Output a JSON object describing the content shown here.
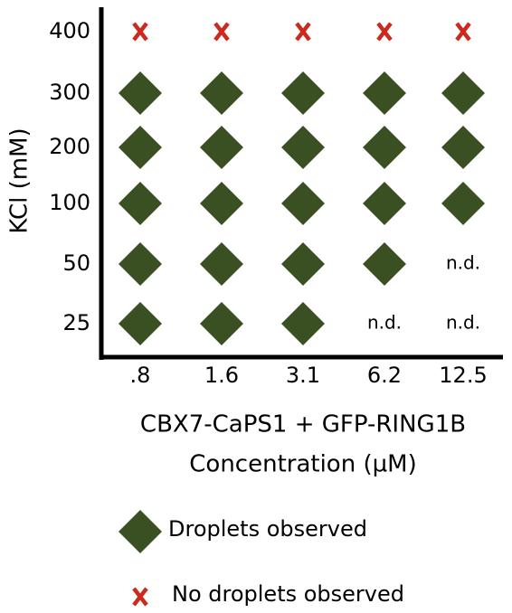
{
  "chart_data": {
    "type": "matrix",
    "ylabel": "KCl (mM)",
    "xlabel": [
      "CBX7-CaPS1 + GFP-RING1B",
      "Concentration (µM)"
    ],
    "categories": [
      ".8",
      "1.6",
      "3.1",
      "6.2",
      "12.5"
    ],
    "rows": [
      "400",
      "300",
      "200",
      "100",
      "50",
      "25"
    ],
    "legend": [
      {
        "name": "Droplets observed",
        "marker": "diamond",
        "color": "#3a4f22"
      },
      {
        "name": "No droplets observed",
        "marker": "x",
        "color": "#cc2a1e"
      }
    ],
    "cells": [
      [
        "No droplets observed",
        "No droplets observed",
        "No droplets observed",
        "No droplets observed",
        "No droplets observed"
      ],
      [
        "Droplets observed",
        "Droplets observed",
        "Droplets observed",
        "Droplets observed",
        "Droplets observed"
      ],
      [
        "Droplets observed",
        "Droplets observed",
        "Droplets observed",
        "Droplets observed",
        "Droplets observed"
      ],
      [
        "Droplets observed",
        "Droplets observed",
        "Droplets observed",
        "Droplets observed",
        "Droplets observed"
      ],
      [
        "Droplets observed",
        "Droplets observed",
        "Droplets observed",
        "Droplets observed",
        "n.d."
      ],
      [
        "Droplets observed",
        "Droplets observed",
        "Droplets observed",
        "n.d.",
        "n.d."
      ]
    ]
  }
}
